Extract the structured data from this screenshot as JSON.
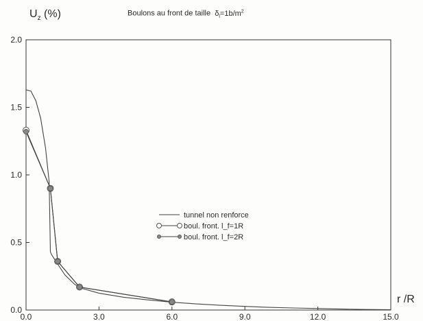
{
  "chart_data": {
    "type": "line",
    "title": "Boulons au front de taille δ_l=1b/m²",
    "ylabel": "U_z (%)",
    "xlabel": "r /R",
    "xlim": [
      0,
      15
    ],
    "ylim": [
      0,
      2
    ],
    "x_ticks": [
      "0.0",
      "3.0",
      "6.0",
      "9.0",
      "12.0",
      "15.0"
    ],
    "y_ticks": [
      "0.0",
      "0.5",
      "1.0",
      "1.5",
      "2.0"
    ],
    "legend_position": "center-right",
    "series": [
      {
        "name": "tunnel non renforce",
        "marker": "none",
        "x": [
          0,
          0.2,
          0.4,
          0.6,
          0.8,
          0.95,
          1.0,
          1.05,
          1.3,
          1.6,
          2.0,
          2.3,
          3,
          4,
          5,
          6,
          7,
          8,
          9,
          10,
          11,
          12,
          13,
          14,
          15
        ],
        "y": [
          1.63,
          1.62,
          1.55,
          1.42,
          1.2,
          0.95,
          0.43,
          0.41,
          0.34,
          0.26,
          0.19,
          0.16,
          0.125,
          0.095,
          0.075,
          0.058,
          0.045,
          0.035,
          0.027,
          0.02,
          0.015,
          0.011,
          0.007,
          0.004,
          0.002
        ]
      },
      {
        "name": "boul. front. l_f=1R",
        "marker": "circle",
        "x": [
          0,
          1.0,
          1.3,
          2.2,
          6.0
        ],
        "y": [
          1.33,
          0.9,
          0.36,
          0.17,
          0.06
        ]
      },
      {
        "name": "boul. front. l_f=2R",
        "marker": "star",
        "x": [
          0,
          1.0,
          1.3,
          2.2,
          6.0
        ],
        "y": [
          1.32,
          0.9,
          0.36,
          0.17,
          0.06
        ]
      }
    ]
  }
}
